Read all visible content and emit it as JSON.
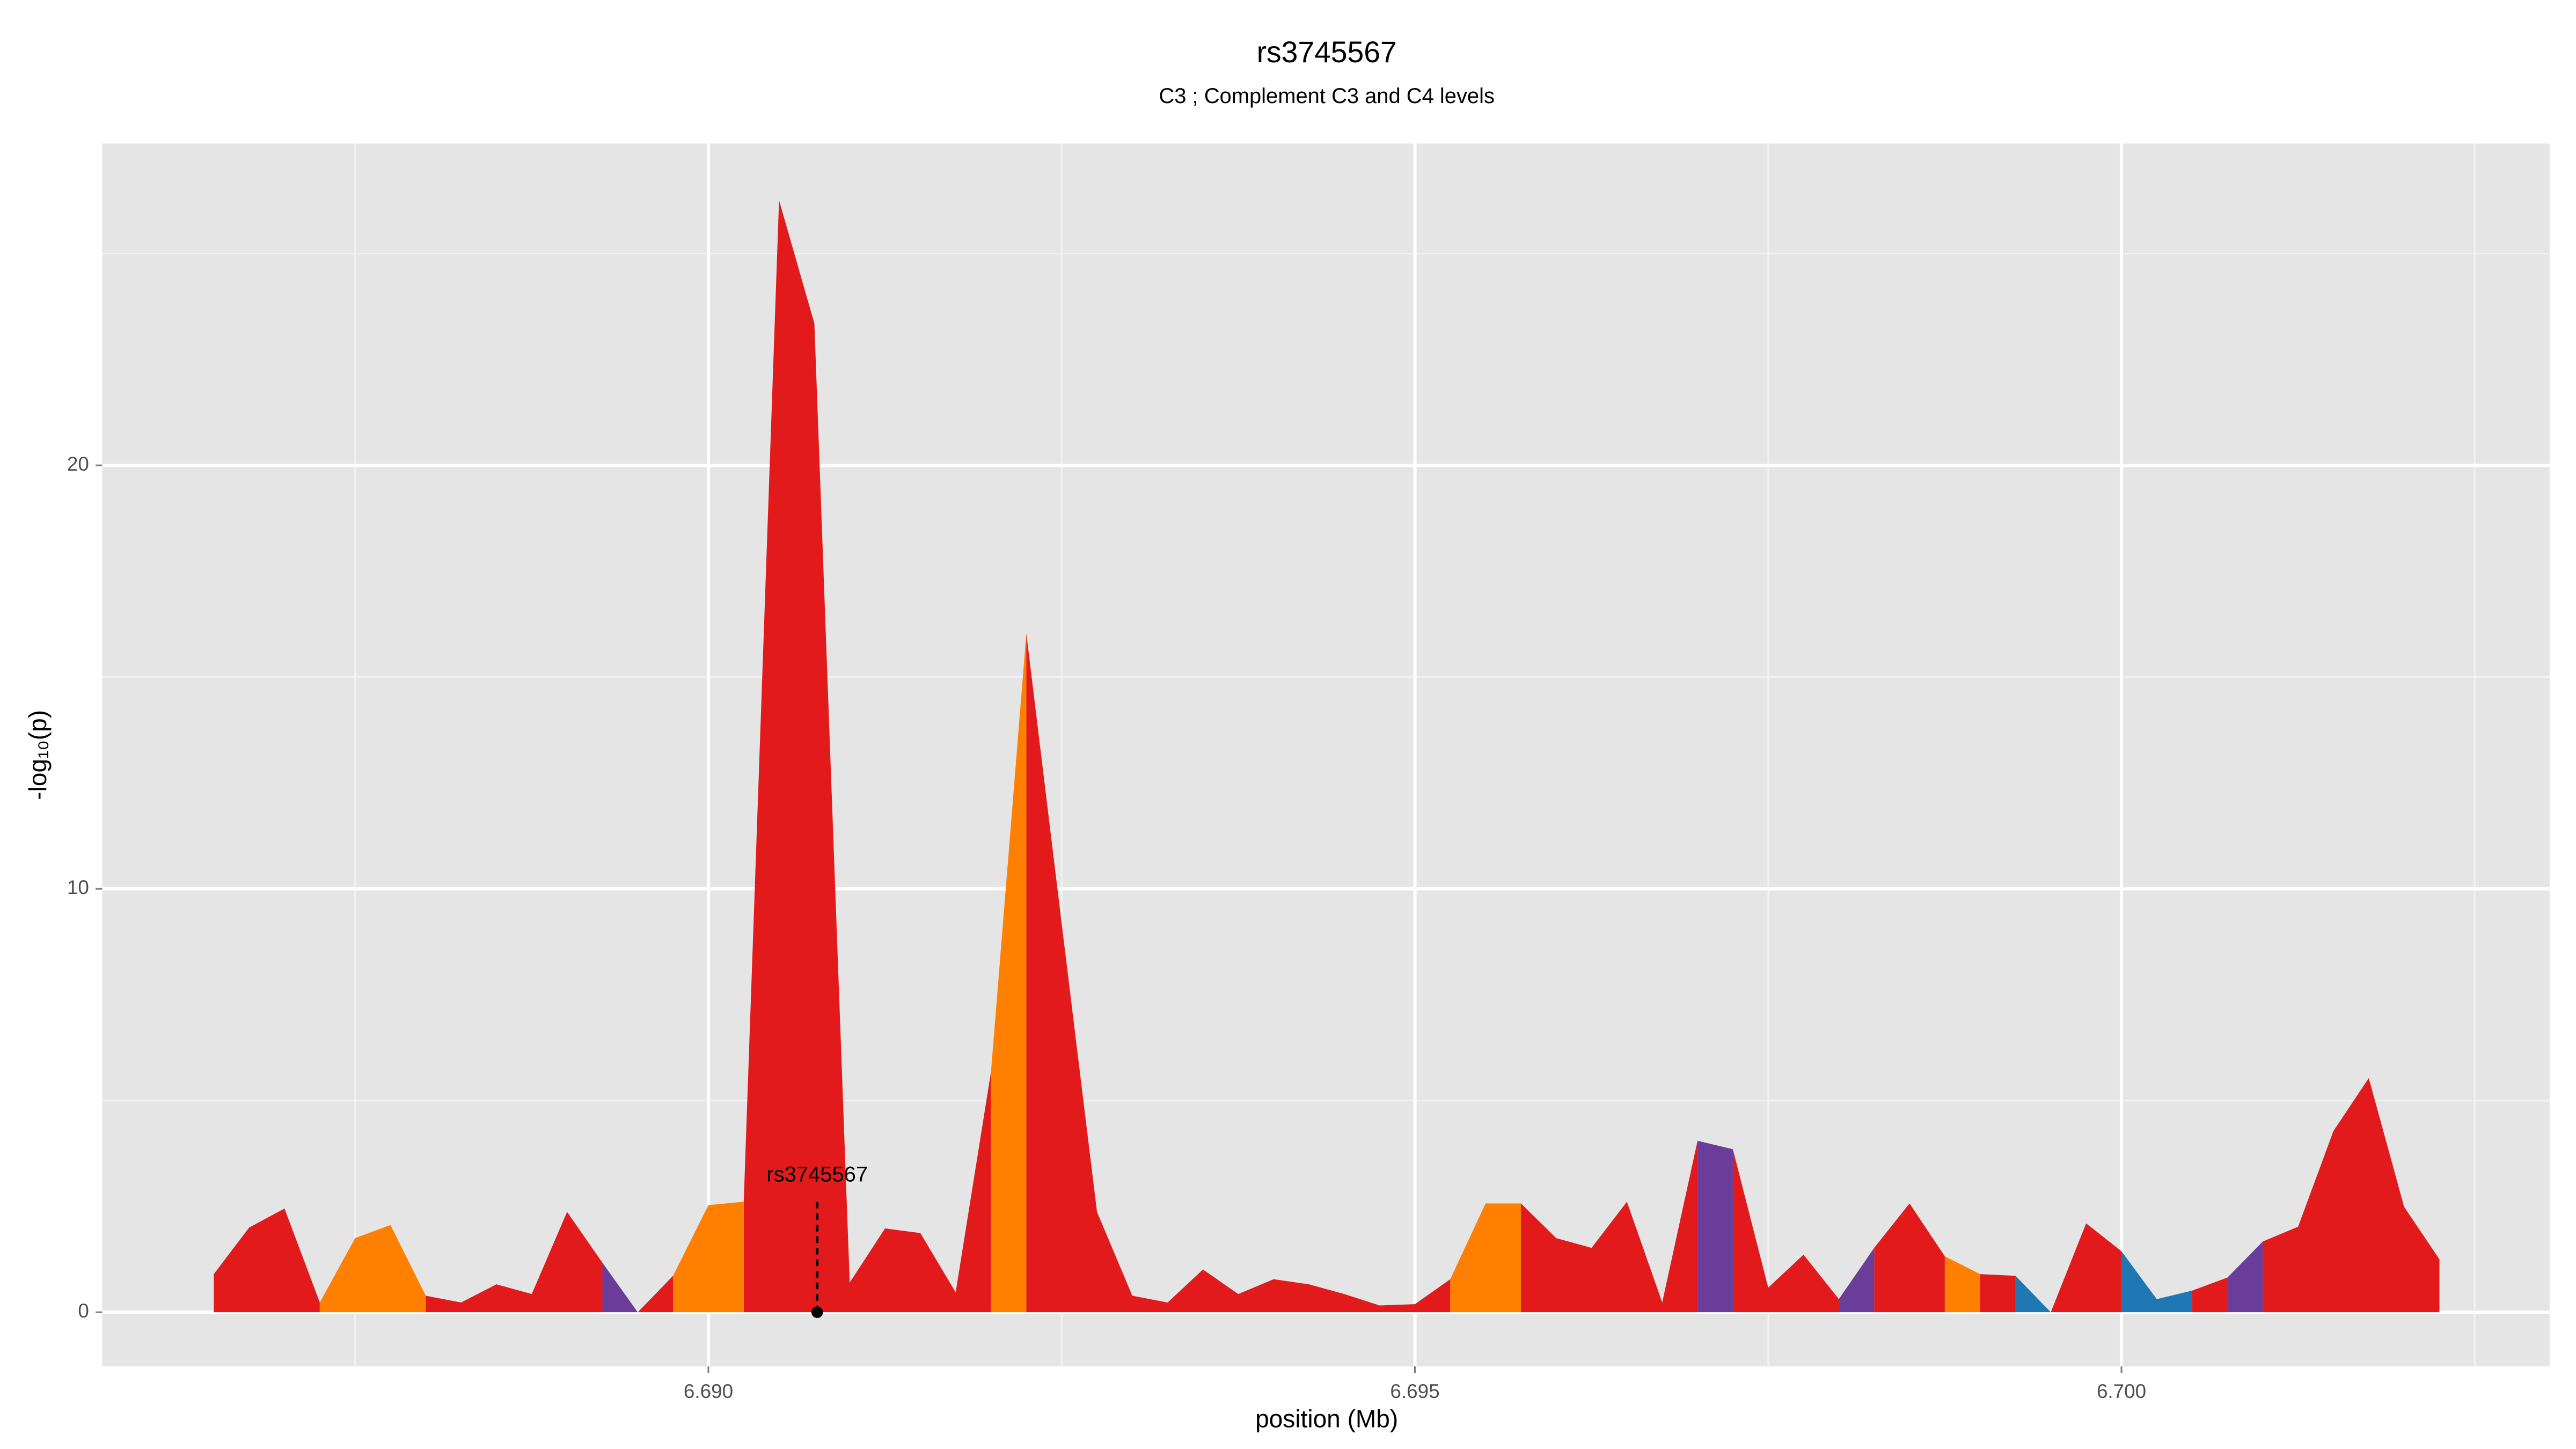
{
  "chart_data": {
    "type": "area",
    "title": "rs3745567",
    "subtitle": "C3 ; Complement C3 and C4 levels",
    "x_label": "position (Mb)",
    "y_label": "-log₁₀(p)",
    "xlim": [
      6.68571,
      6.70303
    ],
    "ylim": [
      -1.28,
      27.6
    ],
    "xticks": [
      {
        "value": 6.69,
        "label": "6.690"
      },
      {
        "value": 6.695,
        "label": "6.695"
      },
      {
        "value": 6.7,
        "label": "6.700"
      }
    ],
    "xminor": [
      6.6875,
      6.6925,
      6.6975,
      6.7025
    ],
    "yticks": [
      0,
      10,
      20
    ],
    "yminor": [
      5,
      15,
      25
    ],
    "grid": true,
    "series": [
      {
        "color": "#e31a1c",
        "x": [
          6.6865,
          6.68675,
          6.687,
          6.68725,
          null,
          6.688,
          6.68825,
          6.6885,
          6.68875,
          6.689,
          6.68925,
          null,
          6.6895,
          6.68975,
          null,
          6.69025,
          6.6905,
          6.69075,
          6.691,
          6.69125,
          6.6915,
          6.69175,
          6.692,
          null,
          6.69225,
          6.6925,
          6.69275,
          6.693,
          6.69325,
          6.6935,
          6.69375,
          6.694,
          6.69425,
          6.6945,
          6.69475,
          6.695,
          6.69525,
          null,
          6.69575,
          6.696,
          6.69625,
          6.6965,
          6.69675,
          6.697,
          null,
          6.69725,
          6.6975,
          6.69775,
          6.698,
          null,
          6.69825,
          6.6985,
          6.69875,
          null,
          6.699,
          6.69925,
          null,
          6.6995,
          6.69975,
          6.7,
          null,
          6.7005,
          6.70075,
          null,
          6.701,
          6.70125,
          6.7015,
          6.70175,
          6.702,
          6.70225
        ],
        "values": [
          0.9,
          2.0,
          2.45,
          0.23,
          null,
          0.39,
          0.23,
          0.66,
          0.43,
          2.37,
          1.17,
          null,
          0,
          0.86,
          null,
          2.61,
          26.26,
          23.35,
          0.7,
          1.98,
          1.87,
          0.47,
          5.68,
          null,
          16.03,
          9.18,
          2.37,
          0.39,
          0.23,
          1.01,
          0.43,
          0.78,
          0.66,
          0.43,
          0.16,
          0.19,
          0.78,
          null,
          2.57,
          1.75,
          1.52,
          2.61,
          0.23,
          4.05,
          null,
          3.85,
          0.58,
          1.36,
          0.31,
          null,
          1.52,
          2.57,
          1.32,
          null,
          0.9,
          0.86,
          null,
          0,
          2.1,
          1.44,
          null,
          0.51,
          0.82,
          null,
          1.67,
          2.02,
          4.28,
          5.53,
          2.49,
          1.25
        ]
      },
      {
        "color": "#ff7f00",
        "x": [
          6.68725,
          6.6875,
          6.68775,
          6.688,
          null,
          6.68975,
          6.69,
          6.69025,
          null,
          6.692,
          6.69225,
          null,
          6.69525,
          6.6955,
          6.69575,
          null,
          6.69875,
          6.699
        ],
        "values": [
          0.23,
          1.75,
          2.06,
          0.39,
          null,
          0.86,
          2.53,
          2.61,
          null,
          5.68,
          16.03,
          null,
          0.78,
          2.57,
          2.57,
          null,
          1.32,
          0.9
        ]
      },
      {
        "color": "#6a3d9a",
        "x": [
          6.68925,
          6.6895,
          null,
          6.697,
          6.69725,
          null,
          6.698,
          6.69825,
          null,
          6.70075,
          6.701
        ],
        "values": [
          1.17,
          0,
          null,
          4.05,
          3.85,
          null,
          0.31,
          1.52,
          null,
          0.82,
          1.67
        ]
      },
      {
        "color": "#1f78b4",
        "x": [
          6.69925,
          6.6995,
          null,
          6.7,
          6.70025,
          6.7005
        ],
        "values": [
          0.86,
          0,
          null,
          1.44,
          0.31,
          0.51
        ]
      }
    ],
    "annotation": {
      "label": "rs3745567",
      "x": 6.69077,
      "y": 2.6
    }
  }
}
